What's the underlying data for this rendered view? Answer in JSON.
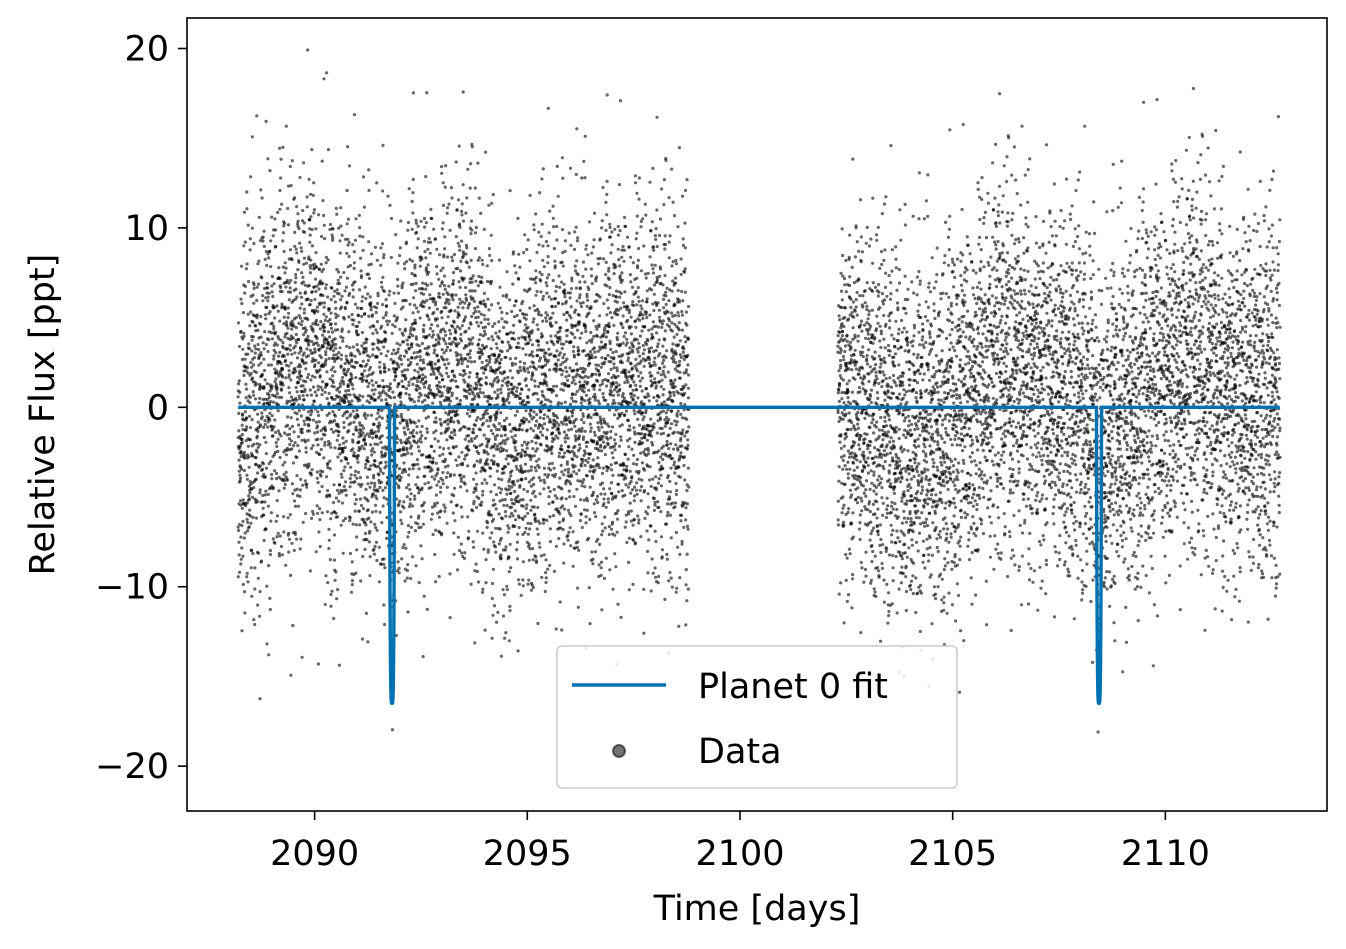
{
  "chart_data": {
    "type": "scatter",
    "xlabel": "Time [days]",
    "ylabel": "Relative Flux [ppt]",
    "xlim": [
      2087.0,
      2113.8
    ],
    "ylim": [
      -22.5,
      21.7
    ],
    "xticks": [
      2090,
      2095,
      2100,
      2105,
      2110
    ],
    "yticks": [
      -20,
      -10,
      0,
      10,
      20
    ],
    "xtick_labels": [
      "2090",
      "2095",
      "2100",
      "2105",
      "2110"
    ],
    "ytick_labels": [
      "−20",
      "−10",
      "0",
      "10",
      "20"
    ],
    "grid": false,
    "legend": {
      "placement": "lower-center",
      "entries": [
        {
          "label": "Planet 0 fit",
          "marker": "line",
          "color": "#0072b2"
        },
        {
          "label": "Data",
          "marker": "circle",
          "color": "#000000"
        }
      ]
    },
    "series": [
      {
        "name": "Data",
        "kind": "scatter",
        "color": "#000000",
        "segments": [
          {
            "x_start": 2088.2,
            "x_end": 2098.8
          },
          {
            "x_start": 2102.3,
            "x_end": 2112.7
          }
        ],
        "baseline_variation_ppt": [
          [
            2088.2,
            -1.5
          ],
          [
            2089.0,
            1.5
          ],
          [
            2090.0,
            2.5
          ],
          [
            2091.0,
            0.5
          ],
          [
            2091.8,
            -0.5
          ],
          [
            2092.5,
            1.5
          ],
          [
            2093.5,
            2.5
          ],
          [
            2094.5,
            -1.5
          ],
          [
            2095.5,
            1.0
          ],
          [
            2096.5,
            0.5
          ],
          [
            2097.5,
            1.5
          ],
          [
            2098.8,
            0.5
          ],
          [
            2102.3,
            1.0
          ],
          [
            2103.0,
            0.0
          ],
          [
            2104.0,
            -2.0
          ],
          [
            2105.0,
            -1.0
          ],
          [
            2106.0,
            2.5
          ],
          [
            2107.0,
            1.5
          ],
          [
            2108.0,
            0.5
          ],
          [
            2108.5,
            -2.0
          ],
          [
            2109.5,
            0.5
          ],
          [
            2110.5,
            3.0
          ],
          [
            2111.5,
            1.0
          ],
          [
            2112.7,
            0.5
          ]
        ],
        "scatter_sigma_ppt": 5.0,
        "approx_point_count": 12000
      },
      {
        "name": "Planet 0 fit",
        "kind": "line",
        "color": "#0072b2",
        "baseline": 0.0,
        "transit_centers": [
          2091.82,
          2108.44
        ],
        "transit_depth": -16.5,
        "transit_half_width_days": 0.06
      }
    ]
  }
}
